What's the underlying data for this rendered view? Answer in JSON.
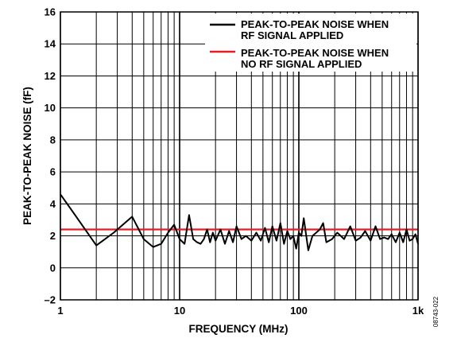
{
  "chart_data": {
    "type": "line",
    "xscale": "log",
    "xlim": [
      1,
      1000
    ],
    "ylim": [
      -2,
      16
    ],
    "xlabel": "FREQUENCY (MHz)",
    "ylabel": "PEAK-TO-PEAK NOISE (fF)",
    "x_tick_labels": [
      "1",
      "10",
      "100",
      "1k"
    ],
    "y_tick_labels": [
      "16",
      "14",
      "12",
      "10",
      "8",
      "6",
      "4",
      "2",
      "0",
      "–2"
    ],
    "grid": true,
    "legend_position": "top-right",
    "figure_id": "08743-022",
    "series": [
      {
        "legend_lines": [
          "PEAK-TO-PEAK NOISE WHEN",
          "RF SIGNAL APPLIED"
        ],
        "color": "#000000",
        "x": [
          1,
          1.3,
          2,
          2.8,
          4,
          5,
          6,
          7,
          8,
          9,
          10,
          11,
          12,
          13,
          14,
          15,
          16,
          17,
          18,
          19,
          20,
          22,
          24,
          26,
          28,
          30,
          33,
          36,
          40,
          44,
          48,
          52,
          56,
          60,
          65,
          70,
          75,
          80,
          85,
          90,
          95,
          100,
          105,
          110,
          120,
          130,
          140,
          150,
          160,
          170,
          190,
          210,
          240,
          270,
          300,
          330,
          360,
          400,
          440,
          480,
          520,
          560,
          600,
          650,
          700,
          750,
          800,
          850,
          900,
          950,
          1000
        ],
        "values": [
          4.6,
          3.4,
          1.4,
          2.2,
          3.2,
          1.8,
          1.3,
          1.5,
          2.2,
          2.7,
          1.8,
          1.5,
          3.3,
          1.8,
          1.6,
          1.5,
          1.8,
          2.4,
          1.6,
          2.2,
          1.7,
          2.4,
          1.5,
          2.3,
          1.6,
          2.6,
          1.8,
          2.0,
          1.7,
          2.2,
          1.7,
          2.5,
          1.6,
          2.6,
          1.7,
          2.8,
          1.5,
          2.3,
          1.8,
          2.0,
          1.2,
          2.2,
          2.0,
          3.1,
          1.1,
          2.0,
          2.2,
          2.4,
          2.8,
          1.6,
          1.8,
          2.2,
          1.8,
          2.6,
          1.7,
          1.9,
          2.3,
          1.7,
          2.6,
          1.8,
          1.9,
          1.8,
          2.1,
          1.6,
          2.2,
          1.6,
          2.4,
          1.7,
          1.8,
          2.1,
          1.5
        ]
      },
      {
        "legend_lines": [
          "PEAK-TO-PEAK NOISE WHEN",
          "NO RF SIGNAL APPLIED"
        ],
        "color": "#e31e24",
        "x": [
          1,
          1000
        ],
        "values": [
          2.4,
          2.4
        ]
      }
    ]
  }
}
